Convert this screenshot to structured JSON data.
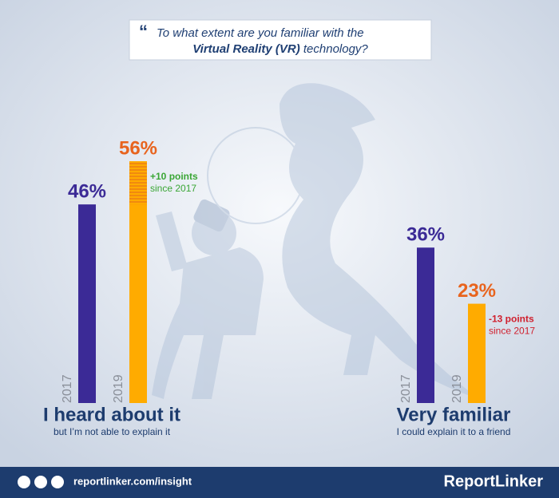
{
  "chart_data": {
    "type": "bar",
    "title": {
      "line1": "To what extent are you familiar with the",
      "bold": "Virtual Reality (VR)",
      "rest": "technology?"
    },
    "groups": [
      {
        "label": "I heard about it",
        "sublabel": "but I’m not able to explain it",
        "categories": [
          "2017",
          "2019"
        ],
        "values": [
          46,
          56
        ],
        "value_labels": [
          "46%",
          "56%"
        ],
        "colors": [
          "#3b2a96",
          "#ffab00"
        ],
        "label_colors": [
          "#3b2a96",
          "#e8641e"
        ],
        "change": "+10 points",
        "change_note": "since 2017",
        "change_color": "#3aa635"
      },
      {
        "label": "Very familiar",
        "sublabel": "I could explain it to a friend",
        "categories": [
          "2017",
          "2019"
        ],
        "values": [
          36,
          23
        ],
        "value_labels": [
          "36%",
          "23%"
        ],
        "colors": [
          "#3b2a96",
          "#ffab00"
        ],
        "label_colors": [
          "#3b2a96",
          "#e8641e"
        ],
        "change": "-13 points",
        "change_note": "since 2017",
        "change_color": "#d0202e"
      }
    ]
  },
  "footer": {
    "url": "reportlinker.com/insight",
    "brand": "ReportLinker"
  }
}
